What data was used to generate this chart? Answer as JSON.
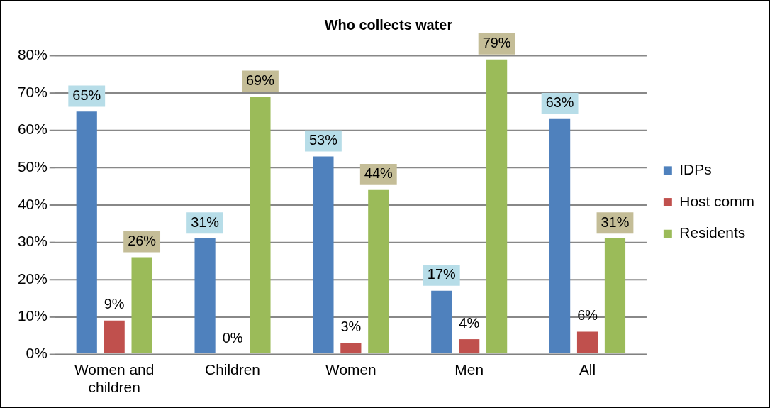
{
  "chart_data": {
    "type": "bar",
    "title": "Who collects water",
    "categories": [
      "Women and children",
      "Children",
      "Women",
      "Men",
      "All"
    ],
    "series": [
      {
        "name": "IDPs",
        "color": "#4f81bd",
        "values": [
          65,
          31,
          53,
          17,
          63
        ],
        "value_labels": [
          "65%",
          "31%",
          "53%",
          "17%",
          "63%"
        ]
      },
      {
        "name": "Host comm",
        "color": "#c0504d",
        "values": [
          9,
          0,
          3,
          4,
          6
        ],
        "value_labels": [
          "9%",
          "0%",
          "3%",
          "4%",
          "6%"
        ]
      },
      {
        "name": "Residents",
        "color": "#9bbb59",
        "values": [
          26,
          69,
          44,
          79,
          31
        ],
        "value_labels": [
          "26%",
          "69%",
          "44%",
          "79%",
          "31%"
        ]
      }
    ],
    "ylim": [
      0,
      80
    ],
    "yticks": [
      {
        "value": 0,
        "label": "0%"
      },
      {
        "value": 10,
        "label": "10%"
      },
      {
        "value": 20,
        "label": "20%"
      },
      {
        "value": 30,
        "label": "30%"
      },
      {
        "value": 40,
        "label": "40%"
      },
      {
        "value": 50,
        "label": "50%"
      },
      {
        "value": 60,
        "label": "60%"
      },
      {
        "value": 70,
        "label": "70%"
      },
      {
        "value": 80,
        "label": "80%"
      }
    ],
    "grid": "y",
    "legend": "right"
  }
}
